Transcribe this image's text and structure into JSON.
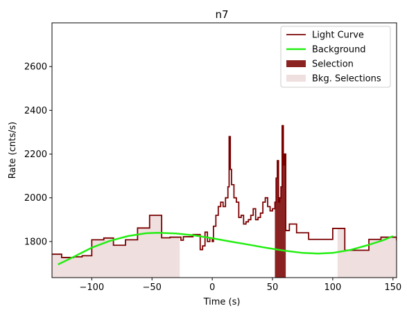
{
  "chart_data": {
    "type": "line",
    "title": "n7",
    "xlabel": "Time (s)",
    "ylabel": "Rate (cnts/s)",
    "xlim": [
      -133,
      153
    ],
    "ylim": [
      1635,
      2800
    ],
    "xticks": [
      -100,
      -50,
      0,
      50,
      100,
      150
    ],
    "yticks": [
      1800,
      2000,
      2200,
      2400,
      2600
    ],
    "legend_position": "top-right",
    "grid": false,
    "legend": [
      {
        "label": "Light Curve",
        "kind": "line",
        "color": "#7a0000"
      },
      {
        "label": "Background",
        "kind": "line",
        "color": "#22ee11"
      },
      {
        "label": "Selection",
        "kind": "patch",
        "color": "#8b2222"
      },
      {
        "label": "Bkg. Selections",
        "kind": "patch",
        "color": "#efdfdf"
      }
    ],
    "bkg_selections": [
      [
        -133,
        -27
      ],
      [
        104,
        153
      ]
    ],
    "selection": [
      52,
      61
    ],
    "background_poly_points": [
      [
        -128,
        1695
      ],
      [
        -115,
        1730
      ],
      [
        -100,
        1772
      ],
      [
        -85,
        1803
      ],
      [
        -70,
        1825
      ],
      [
        -55,
        1838
      ],
      [
        -45,
        1840
      ],
      [
        -30,
        1837
      ],
      [
        -15,
        1828
      ],
      [
        0,
        1815
      ],
      [
        15,
        1800
      ],
      [
        30,
        1786
      ],
      [
        45,
        1771
      ],
      [
        60,
        1758
      ],
      [
        75,
        1748
      ],
      [
        88,
        1745
      ],
      [
        100,
        1748
      ],
      [
        115,
        1762
      ],
      [
        130,
        1785
      ],
      [
        142,
        1806
      ],
      [
        150,
        1825
      ]
    ],
    "light_curve_steps": [
      [
        -133,
        1742
      ],
      [
        -125,
        1727
      ],
      [
        -115,
        1730
      ],
      [
        -108,
        1735
      ],
      [
        -100,
        1808
      ],
      [
        -90,
        1816
      ],
      [
        -82,
        1783
      ],
      [
        -72,
        1808
      ],
      [
        -62,
        1862
      ],
      [
        -52,
        1920
      ],
      [
        -42,
        1817
      ],
      [
        -35,
        1820
      ],
      [
        -26,
        1806
      ],
      [
        -24,
        1822
      ],
      [
        -16,
        1832
      ],
      [
        -10,
        1763
      ],
      [
        -8,
        1780
      ],
      [
        -6,
        1843
      ],
      [
        -4,
        1800
      ],
      [
        -2,
        1815
      ],
      [
        0,
        1800
      ],
      [
        1,
        1870
      ],
      [
        3,
        1920
      ],
      [
        5,
        1960
      ],
      [
        7,
        1980
      ],
      [
        9,
        1960
      ],
      [
        11,
        2000
      ],
      [
        13,
        2050
      ],
      [
        14,
        2280
      ],
      [
        15,
        2130
      ],
      [
        16,
        2060
      ],
      [
        18,
        2000
      ],
      [
        20,
        1980
      ],
      [
        22,
        1910
      ],
      [
        24,
        1920
      ],
      [
        26,
        1880
      ],
      [
        28,
        1890
      ],
      [
        30,
        1900
      ],
      [
        32,
        1920
      ],
      [
        34,
        1950
      ],
      [
        36,
        1900
      ],
      [
        38,
        1910
      ],
      [
        40,
        1930
      ],
      [
        42,
        1980
      ],
      [
        44,
        2000
      ],
      [
        46,
        1960
      ],
      [
        48,
        1940
      ],
      [
        50,
        1950
      ],
      [
        52,
        1980
      ],
      [
        53,
        2090
      ],
      [
        54,
        2170
      ],
      [
        55,
        1980
      ],
      [
        56,
        2000
      ],
      [
        57,
        2050
      ],
      [
        58,
        2330
      ],
      [
        59,
        2150
      ],
      [
        60,
        2200
      ],
      [
        61,
        1850
      ],
      [
        64,
        1880
      ],
      [
        70,
        1840
      ],
      [
        80,
        1810
      ],
      [
        92,
        1810
      ],
      [
        100,
        1860
      ],
      [
        110,
        1760
      ],
      [
        120,
        1760
      ],
      [
        130,
        1810
      ],
      [
        140,
        1820
      ],
      [
        153,
        1805
      ]
    ]
  }
}
